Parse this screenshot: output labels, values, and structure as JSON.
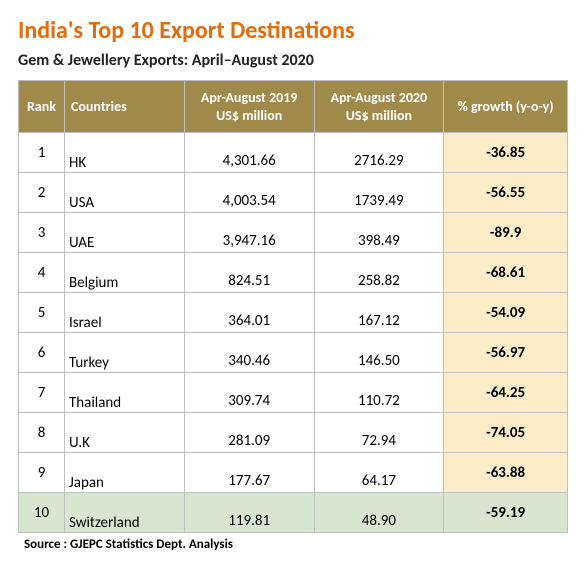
{
  "title": "India's Top 10 Export Destinations",
  "title_color": "#e46c0a",
  "subtitle": "Gem & Jewellery Exports: April–August 2020",
  "header_bg": "#a08a4a",
  "growth_bg": "#fdecc8",
  "highlight_row_bg": "#d9e6cf",
  "columns": {
    "rank": "Rank",
    "country": "Countries",
    "val2019": "Apr-August 2019\nUS$ million",
    "val2020": "Apr-August 2020\nUS$ million",
    "growth": "% growth (y-o-y)"
  },
  "rows": [
    {
      "rank": "1",
      "country": "HK",
      "v2019": "4,301.66",
      "v2020": "2716.29",
      "growth": "-36.85",
      "hl": false
    },
    {
      "rank": "2",
      "country": "USA",
      "v2019": "4,003.54",
      "v2020": "1739.49",
      "growth": "-56.55",
      "hl": false
    },
    {
      "rank": "3",
      "country": "UAE",
      "v2019": "3,947.16",
      "v2020": "398.49",
      "growth": "-89.9",
      "hl": false
    },
    {
      "rank": "4",
      "country": "Belgium",
      "v2019": "824.51",
      "v2020": "258.82",
      "growth": "-68.61",
      "hl": false
    },
    {
      "rank": "5",
      "country": "Israel",
      "v2019": "364.01",
      "v2020": "167.12",
      "growth": "-54.09",
      "hl": false
    },
    {
      "rank": "6",
      "country": "Turkey",
      "v2019": "340.46",
      "v2020": "146.50",
      "growth": "-56.97",
      "hl": false
    },
    {
      "rank": "7",
      "country": "Thailand",
      "v2019": "309.74",
      "v2020": "110.72",
      "growth": "-64.25",
      "hl": false
    },
    {
      "rank": "8",
      "country": "U.K",
      "v2019": "281.09",
      "v2020": "72.94",
      "growth": "-74.05",
      "hl": false
    },
    {
      "rank": "9",
      "country": "Japan",
      "v2019": "177.67",
      "v2020": "64.17",
      "growth": "-63.88",
      "hl": false
    },
    {
      "rank": "10",
      "country": "Switzerland",
      "v2019": "119.81",
      "v2020": "48.90",
      "growth": "-59.19",
      "hl": true
    }
  ],
  "source": "Source :  GJEPC  Statistics Dept. Analysis"
}
